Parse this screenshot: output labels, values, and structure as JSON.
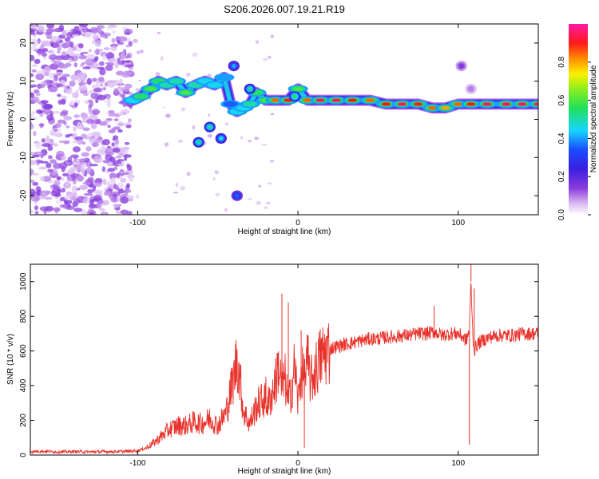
{
  "title": "S206.2026.007.19.21.R19",
  "chart_data": [
    {
      "type": "heatmap",
      "xlabel": "Height of straight line (km)",
      "ylabel": "Frequency (Hz)",
      "xlim": [
        -167,
        150
      ],
      "ylim": [
        -25,
        25
      ],
      "xticks": [
        -100,
        0,
        100
      ],
      "xtick_labels": [
        "-100",
        "0",
        "100"
      ],
      "yticks": [
        -20,
        -10,
        0,
        10,
        20
      ],
      "ytick_labels": [
        "-20",
        "-10",
        "0",
        "10",
        "20"
      ],
      "grid": false,
      "colorbar": {
        "label": "Normalized spectral amplitude",
        "range": [
          0,
          1
        ],
        "ticks": [
          0.0,
          0.2,
          0.4,
          0.6,
          0.8
        ],
        "tick_labels": [
          "0.0",
          "0.2",
          "0.4",
          "0.6",
          "0.8"
        ],
        "colormap": "rainbow (white-violet-blue-cyan-green-yellow-red-magenta)"
      },
      "ridge": [
        {
          "x": -103,
          "y": 5,
          "a": 0.45
        },
        {
          "x": -98,
          "y": 6,
          "a": 0.55
        },
        {
          "x": -92,
          "y": 8,
          "a": 0.6
        },
        {
          "x": -87,
          "y": 10,
          "a": 0.55
        },
        {
          "x": -82,
          "y": 9,
          "a": 0.5
        },
        {
          "x": -76,
          "y": 10,
          "a": 0.5
        },
        {
          "x": -70,
          "y": 7,
          "a": 0.6
        },
        {
          "x": -64,
          "y": 9,
          "a": 0.5
        },
        {
          "x": -58,
          "y": 10,
          "a": 0.45
        },
        {
          "x": -52,
          "y": 9,
          "a": 0.45
        },
        {
          "x": -46,
          "y": 11,
          "a": 0.4
        },
        {
          "x": -42,
          "y": 4,
          "a": 0.35
        },
        {
          "x": -38,
          "y": 2,
          "a": 0.45
        },
        {
          "x": -34,
          "y": 3,
          "a": 0.45
        },
        {
          "x": -30,
          "y": 4,
          "a": 0.5
        },
        {
          "x": -26,
          "y": 7,
          "a": 0.55
        },
        {
          "x": -20,
          "y": 5,
          "a": 0.6
        },
        {
          "x": -14,
          "y": 5,
          "a": 0.85
        },
        {
          "x": -6,
          "y": 5,
          "a": 0.9
        },
        {
          "x": 0,
          "y": 8,
          "a": 0.6
        },
        {
          "x": 6,
          "y": 5,
          "a": 0.85
        },
        {
          "x": 14,
          "y": 5,
          "a": 0.95
        },
        {
          "x": 24,
          "y": 5,
          "a": 0.95
        },
        {
          "x": 34,
          "y": 5,
          "a": 0.9
        },
        {
          "x": 45,
          "y": 5,
          "a": 0.85
        },
        {
          "x": 55,
          "y": 4,
          "a": 0.9
        },
        {
          "x": 65,
          "y": 4,
          "a": 0.95
        },
        {
          "x": 75,
          "y": 4,
          "a": 0.9
        },
        {
          "x": 84,
          "y": 3,
          "a": 0.85
        },
        {
          "x": 92,
          "y": 3,
          "a": 0.8
        },
        {
          "x": 100,
          "y": 4,
          "a": 0.85
        },
        {
          "x": 108,
          "y": 4,
          "a": 0.9
        },
        {
          "x": 118,
          "y": 4,
          "a": 0.95
        },
        {
          "x": 130,
          "y": 4,
          "a": 0.95
        },
        {
          "x": 140,
          "y": 4,
          "a": 0.95
        },
        {
          "x": 150,
          "y": 4,
          "a": 0.95
        }
      ],
      "branches": [
        {
          "x": -62,
          "y": -6,
          "a": 0.5
        },
        {
          "x": -55,
          "y": -2,
          "a": 0.5
        },
        {
          "x": -48,
          "y": -5,
          "a": 0.45
        },
        {
          "x": -40,
          "y": 14,
          "a": 0.4
        },
        {
          "x": -38,
          "y": -20,
          "a": 0.35
        },
        {
          "x": -30,
          "y": 8,
          "a": 0.5
        },
        {
          "x": -2,
          "y": 6,
          "a": 0.55
        },
        {
          "x": 102,
          "y": 14,
          "a": 0.15
        },
        {
          "x": 108,
          "y": 8,
          "a": 0.1
        }
      ]
    },
    {
      "type": "line",
      "xlabel": "Height of straight line (km)",
      "ylabel": "SNR (10 * v/v)",
      "xlim": [
        -167,
        150
      ],
      "ylim": [
        0,
        1100
      ],
      "xticks": [
        -100,
        0,
        100
      ],
      "xtick_labels": [
        "-100",
        "0",
        "100"
      ],
      "yticks": [
        0,
        200,
        400,
        600,
        800,
        1000
      ],
      "ytick_labels": [
        "0",
        "200",
        "400",
        "600",
        "800",
        "1000"
      ],
      "grid": false,
      "color": "#e8322b",
      "series": [
        {
          "x": [
            -167,
            -160,
            -150,
            -140,
            -130,
            -120,
            -110,
            -100,
            -95,
            -90,
            -85,
            -80,
            -75,
            -70,
            -65,
            -60,
            -55,
            -50,
            -45,
            -40,
            -38,
            -36,
            -34,
            -30,
            -26,
            -22,
            -18,
            -14,
            -12,
            -10,
            -8,
            -6,
            -4,
            -2,
            0,
            2,
            4,
            6,
            8,
            10,
            14,
            18,
            22,
            26,
            30,
            35,
            40,
            45,
            50,
            55,
            60,
            65,
            70,
            75,
            80,
            85,
            90,
            95,
            100,
            103,
            105,
            107,
            108,
            109,
            110,
            112,
            115,
            120,
            125,
            130,
            135,
            140,
            145,
            150
          ],
          "y": [
            20,
            22,
            18,
            20,
            18,
            20,
            20,
            25,
            40,
            70,
            110,
            150,
            170,
            170,
            190,
            180,
            210,
            170,
            240,
            450,
            560,
            420,
            250,
            180,
            280,
            320,
            300,
            420,
            520,
            380,
            440,
            300,
            380,
            520,
            300,
            480,
            440,
            540,
            420,
            470,
            560,
            600,
            620,
            630,
            640,
            650,
            660,
            670,
            670,
            680,
            680,
            690,
            690,
            700,
            700,
            710,
            690,
            700,
            700,
            680,
            660,
            720,
            1000,
            720,
            600,
            640,
            660,
            680,
            690,
            690,
            690,
            700,
            700,
            700
          ]
        }
      ],
      "spikes": [
        {
          "x": -38,
          "y": 610
        },
        {
          "x": -20,
          "y": 450
        },
        {
          "x": -10,
          "y": 930
        },
        {
          "x": -6,
          "y": 880
        },
        {
          "x": 2,
          "y": 720
        },
        {
          "x": 4,
          "y": 40
        },
        {
          "x": 107,
          "y": 60
        },
        {
          "x": 108,
          "y": 1100
        },
        {
          "x": 110,
          "y": 960
        },
        {
          "x": 85,
          "y": 860
        }
      ]
    }
  ]
}
